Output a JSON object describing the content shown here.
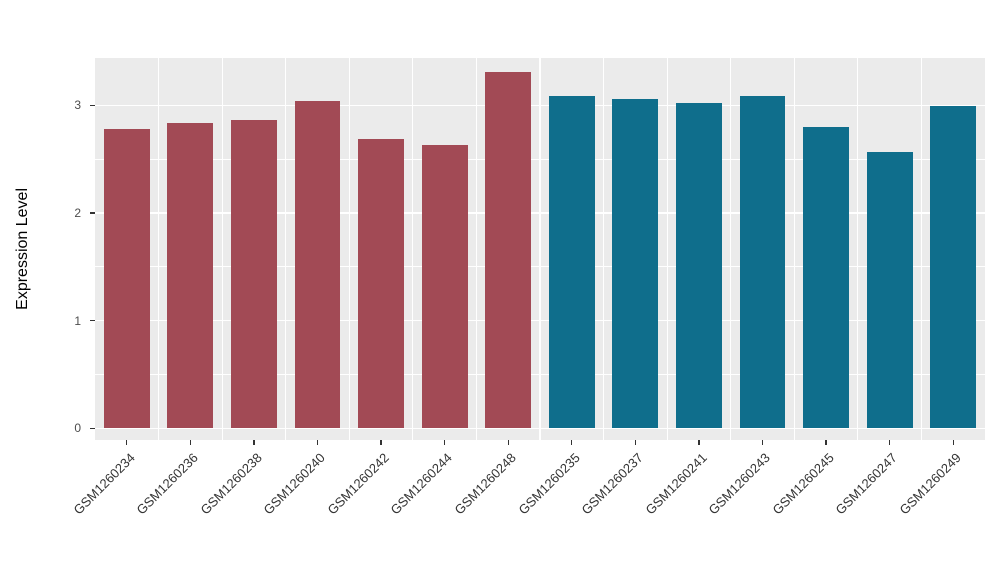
{
  "figure": {
    "background": "#FFFFFF"
  },
  "chart_data": {
    "type": "bar",
    "title": "",
    "xlabel": "",
    "ylabel": "Expression Level",
    "legend": "none",
    "grid": "on",
    "panel_background": "#EBEBEB",
    "grid_color": "#FFFFFF",
    "axis_text_color": "#4D4D4D",
    "ylim": [
      -0.11,
      3.44
    ],
    "yticks": [
      0,
      1,
      2,
      3
    ],
    "yticks_minor": [
      0.5,
      1.5,
      2.5
    ],
    "bar_width_fraction": 0.72,
    "categories": [
      "GSM1260234",
      "GSM1260236",
      "GSM1260238",
      "GSM1260240",
      "GSM1260242",
      "GSM1260244",
      "GSM1260248",
      "GSM1260235",
      "GSM1260237",
      "GSM1260241",
      "GSM1260243",
      "GSM1260245",
      "GSM1260247",
      "GSM1260249"
    ],
    "values": [
      2.78,
      2.84,
      2.86,
      3.04,
      2.69,
      2.63,
      3.31,
      3.09,
      3.06,
      3.02,
      3.09,
      2.8,
      2.57,
      2.99
    ],
    "groups": [
      "group1",
      "group1",
      "group1",
      "group1",
      "group1",
      "group1",
      "group1",
      "group2",
      "group2",
      "group2",
      "group2",
      "group2",
      "group2",
      "group2"
    ],
    "group_colors": {
      "group1": "#A24A55",
      "group2": "#0F6E8C"
    }
  }
}
